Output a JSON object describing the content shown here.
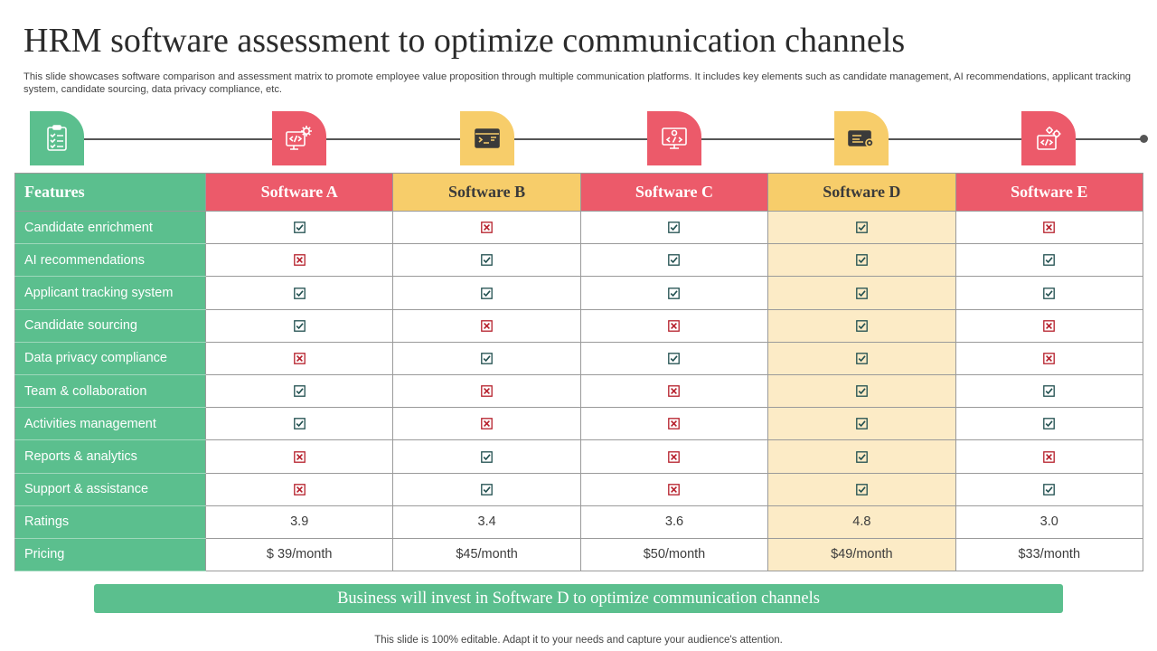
{
  "title": "HRM software assessment to optimize communication channels",
  "subtitle": "This slide showcases software comparison and assessment matrix to promote employee value proposition through multiple communication platforms. It includes key elements such as candidate management, AI recommendations, applicant tracking system, candidate sourcing, data privacy compliance, etc.",
  "colors": {
    "green": "#5bbf8e",
    "red": "#ec5a6a",
    "yellow": "#f7cd6a",
    "highlight": "#fcebc6",
    "check": "#1f4e4e",
    "cross": "#b51e2a"
  },
  "icons": [
    "checklist-icon",
    "code-gear-icon",
    "terminal-window-icon",
    "code-screen-icon",
    "server-settings-icon",
    "code-gears-icon"
  ],
  "table": {
    "features_header": "Features",
    "software": [
      "Software A",
      "Software B",
      "Software C",
      "Software D",
      "Software E"
    ],
    "rows": [
      {
        "feature": "Candidate enrichment",
        "values": [
          "check",
          "cross",
          "check",
          "check",
          "cross"
        ]
      },
      {
        "feature": "AI recommendations",
        "values": [
          "cross",
          "check",
          "check",
          "check",
          "check"
        ]
      },
      {
        "feature": "Applicant tracking system",
        "values": [
          "check",
          "check",
          "check",
          "check",
          "check"
        ]
      },
      {
        "feature": "Candidate sourcing",
        "values": [
          "check",
          "cross",
          "cross",
          "check",
          "cross"
        ]
      },
      {
        "feature": "Data privacy compliance",
        "values": [
          "cross",
          "check",
          "check",
          "check",
          "cross"
        ]
      },
      {
        "feature": "Team & collaboration",
        "values": [
          "check",
          "cross",
          "cross",
          "check",
          "check"
        ]
      },
      {
        "feature": "Activities management",
        "values": [
          "check",
          "cross",
          "cross",
          "check",
          "check"
        ]
      },
      {
        "feature": "Reports & analytics",
        "values": [
          "cross",
          "check",
          "cross",
          "check",
          "cross"
        ]
      },
      {
        "feature": "Support & assistance",
        "values": [
          "cross",
          "check",
          "cross",
          "check",
          "check"
        ]
      }
    ],
    "ratings": {
      "label": "Ratings",
      "values": [
        "3.9",
        "3.4",
        "3.6",
        "4.8",
        "3.0"
      ]
    },
    "pricing": {
      "label": "Pricing",
      "values": [
        "$ 39/month",
        "$45/month",
        "$50/month",
        "$49/month",
        "$33/month"
      ]
    }
  },
  "banner": "Business will invest in Software D to optimize communication channels",
  "footer": "This slide is 100% editable. Adapt it to your needs and capture your audience's attention."
}
